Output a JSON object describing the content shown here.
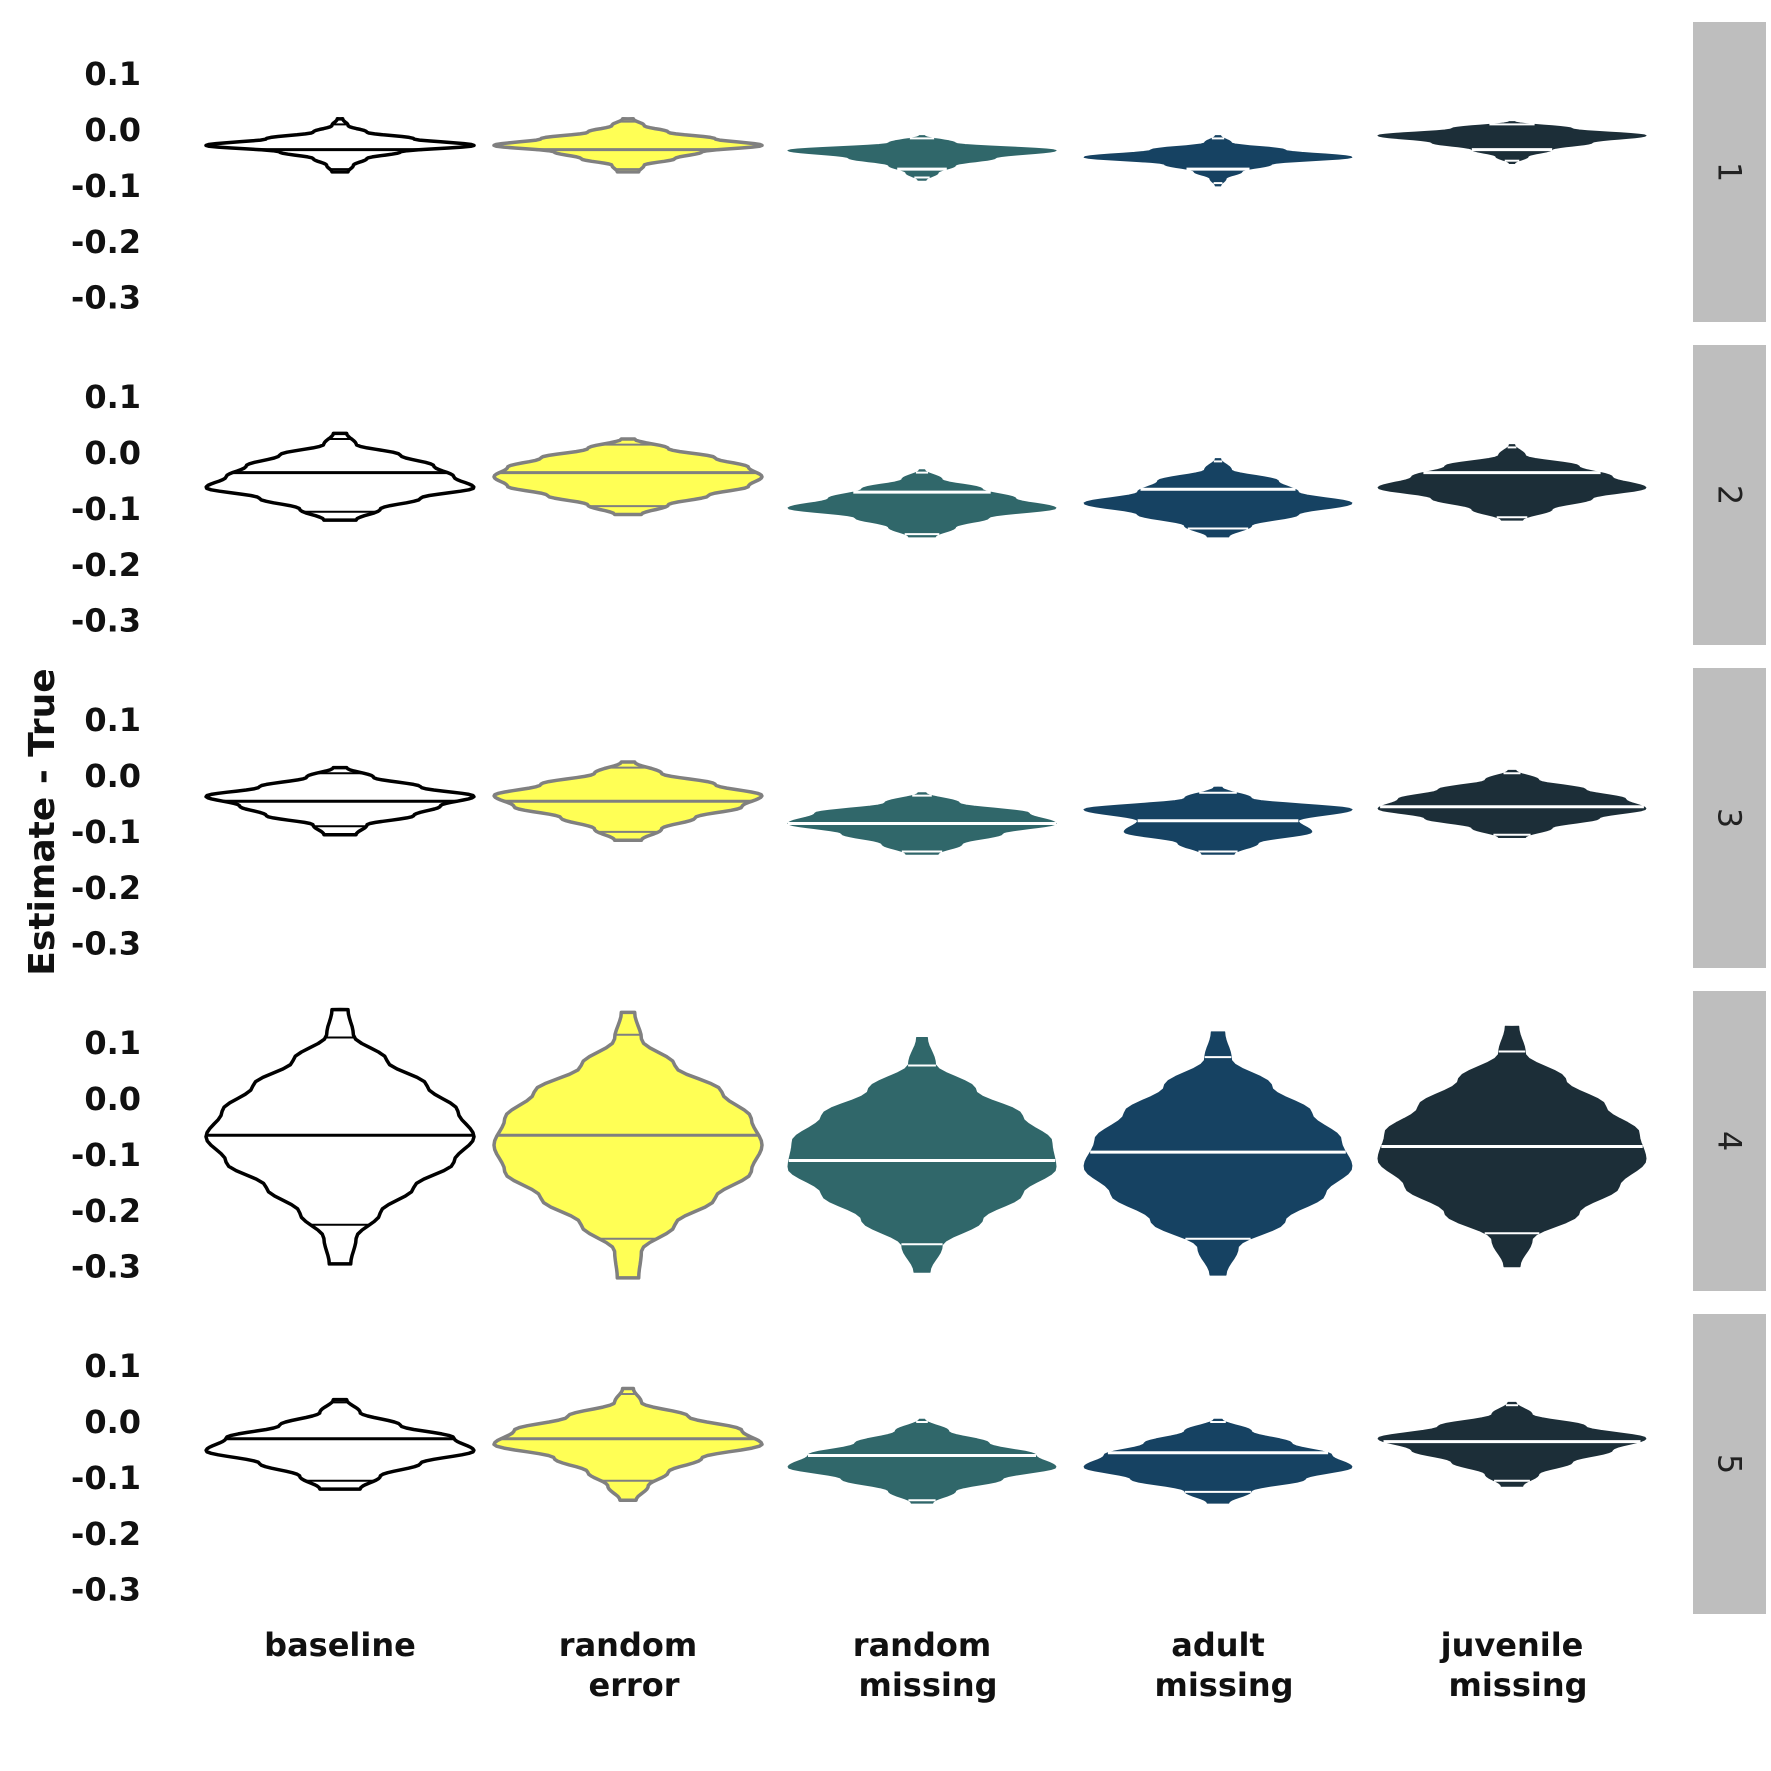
{
  "chart_data": {
    "type": "violin",
    "ylabel": "Estimate - True",
    "yticks": [
      0.1,
      0.0,
      -0.1,
      -0.2,
      -0.3
    ],
    "ytick_labels": [
      "0.1",
      "0.0",
      "-0.1",
      "-0.2",
      "-0.3"
    ],
    "ylim": [
      -0.345,
      0.145
    ],
    "categories": [
      {
        "key": "baseline",
        "label_lines": [
          "baseline"
        ],
        "fill": "#ffffff",
        "stroke": "#000000",
        "inner_line": "#000000"
      },
      {
        "key": "random_error",
        "label_lines": [
          "random",
          "error"
        ],
        "fill": "#ffff55",
        "stroke": "#808080",
        "inner_line": "#808080"
      },
      {
        "key": "random_missing",
        "label_lines": [
          "random",
          "missing"
        ],
        "fill": "#30676a",
        "stroke": "#30676a",
        "inner_line": "#ffffff"
      },
      {
        "key": "adult_missing",
        "label_lines": [
          "adult",
          "missing"
        ],
        "fill": "#164262",
        "stroke": "#164262",
        "inner_line": "#ffffff"
      },
      {
        "key": "juvenile_missing",
        "label_lines": [
          "juvenile",
          "missing"
        ],
        "fill": "#1c2e38",
        "stroke": "#1c2e38",
        "inner_line": "#ffffff"
      }
    ],
    "panels": [
      {
        "label": "1",
        "violins": [
          {
            "min": -0.075,
            "max": 0.02,
            "median": -0.035,
            "q_low": -0.07,
            "q_high": 0.01,
            "shape": [
              0.02,
              0.06,
              0.2,
              0.55,
              1.0,
              0.45,
              0.2,
              0.1,
              0.06
            ]
          },
          {
            "min": -0.075,
            "max": 0.02,
            "median": -0.035,
            "q_low": -0.07,
            "q_high": 0.015,
            "shape": [
              0.04,
              0.12,
              0.3,
              0.65,
              1.0,
              0.55,
              0.35,
              0.12,
              0.08
            ]
          },
          {
            "min": -0.09,
            "max": -0.01,
            "median": -0.07,
            "q_low": -0.085,
            "q_high": -0.015,
            "shape": [
              0.02,
              0.25,
              1.0,
              0.55,
              0.25,
              0.12,
              0.03
            ]
          },
          {
            "min": -0.1,
            "max": -0.01,
            "median": -0.07,
            "q_low": -0.095,
            "q_high": -0.015,
            "shape": [
              0.02,
              0.1,
              0.5,
              1.0,
              0.4,
              0.18,
              0.06,
              0.02
            ]
          },
          {
            "min": -0.06,
            "max": 0.015,
            "median": -0.035,
            "q_low": -0.055,
            "q_high": 0.01,
            "shape": [
              0.02,
              0.45,
              1.0,
              0.6,
              0.3,
              0.12,
              0.02
            ]
          }
        ]
      },
      {
        "label": "2",
        "violins": [
          {
            "min": -0.12,
            "max": 0.035,
            "median": -0.035,
            "q_low": -0.105,
            "q_high": 0.025,
            "shape": [
              0.05,
              0.12,
              0.45,
              0.7,
              0.85,
              1.0,
              0.6,
              0.3,
              0.12
            ]
          },
          {
            "min": -0.11,
            "max": 0.025,
            "median": -0.035,
            "q_low": -0.095,
            "q_high": 0.015,
            "shape": [
              0.05,
              0.3,
              0.65,
              0.9,
              1.0,
              0.9,
              0.6,
              0.3,
              0.1
            ]
          },
          {
            "min": -0.15,
            "max": -0.03,
            "median": -0.07,
            "q_low": -0.145,
            "q_high": -0.035,
            "shape": [
              0.02,
              0.15,
              0.45,
              0.7,
              1.0,
              0.5,
              0.25,
              0.1
            ]
          },
          {
            "min": -0.15,
            "max": -0.01,
            "median": -0.065,
            "q_low": -0.135,
            "q_high": -0.015,
            "shape": [
              0.02,
              0.1,
              0.45,
              0.6,
              1.0,
              0.6,
              0.25,
              0.08
            ]
          },
          {
            "min": -0.12,
            "max": 0.015,
            "median": -0.035,
            "q_low": -0.115,
            "q_high": 0.01,
            "shape": [
              0.02,
              0.1,
              0.5,
              0.75,
              1.0,
              0.6,
              0.3,
              0.08
            ]
          }
        ]
      },
      {
        "label": "3",
        "violins": [
          {
            "min": -0.105,
            "max": 0.015,
            "median": -0.045,
            "q_low": -0.09,
            "q_high": 0.005,
            "shape": [
              0.05,
              0.25,
              0.6,
              1.0,
              0.75,
              0.55,
              0.2,
              0.12
            ]
          },
          {
            "min": -0.115,
            "max": 0.025,
            "median": -0.045,
            "q_low": -0.1,
            "q_high": 0.015,
            "shape": [
              0.05,
              0.25,
              0.65,
              1.0,
              0.85,
              0.5,
              0.25,
              0.1
            ]
          },
          {
            "min": -0.14,
            "max": -0.03,
            "median": -0.085,
            "q_low": -0.135,
            "q_high": -0.035,
            "shape": [
              0.03,
              0.28,
              0.8,
              1.0,
              0.6,
              0.3,
              0.12
            ]
          },
          {
            "min": -0.14,
            "max": -0.02,
            "median": -0.08,
            "q_low": -0.135,
            "q_high": -0.03,
            "shape": [
              0.03,
              0.25,
              1.0,
              0.6,
              0.7,
              0.3,
              0.12
            ]
          },
          {
            "min": -0.11,
            "max": 0.01,
            "median": -0.055,
            "q_low": -0.105,
            "q_high": 0.005,
            "shape": [
              0.03,
              0.2,
              0.55,
              0.85,
              1.0,
              0.65,
              0.3,
              0.1
            ]
          }
        ]
      },
      {
        "label": "4",
        "violins": [
          {
            "min": -0.295,
            "max": 0.16,
            "median": -0.065,
            "q_low": -0.225,
            "q_high": 0.11,
            "shape": [
              0.06,
              0.1,
              0.35,
              0.65,
              0.88,
              1.0,
              0.85,
              0.55,
              0.3,
              0.12,
              0.08
            ]
          },
          {
            "min": -0.32,
            "max": 0.155,
            "median": -0.065,
            "q_low": -0.25,
            "q_high": 0.115,
            "shape": [
              0.05,
              0.1,
              0.35,
              0.7,
              0.92,
              1.0,
              0.92,
              0.65,
              0.35,
              0.1,
              0.08
            ]
          },
          {
            "min": -0.31,
            "max": 0.11,
            "median": -0.11,
            "q_low": -0.26,
            "q_high": 0.06,
            "shape": [
              0.04,
              0.1,
              0.4,
              0.75,
              0.97,
              1.0,
              0.75,
              0.45,
              0.15,
              0.06
            ]
          },
          {
            "min": -0.315,
            "max": 0.12,
            "median": -0.095,
            "q_low": -0.25,
            "q_high": 0.075,
            "shape": [
              0.05,
              0.1,
              0.4,
              0.7,
              0.92,
              1.0,
              0.8,
              0.5,
              0.15,
              0.06
            ]
          },
          {
            "min": -0.3,
            "max": 0.13,
            "median": -0.085,
            "q_low": -0.24,
            "q_high": 0.085,
            "shape": [
              0.05,
              0.1,
              0.4,
              0.7,
              0.95,
              1.0,
              0.8,
              0.5,
              0.15,
              0.06
            ]
          }
        ]
      },
      {
        "label": "5",
        "violins": [
          {
            "min": -0.12,
            "max": 0.04,
            "median": -0.03,
            "q_low": -0.105,
            "q_high": 0.035,
            "shape": [
              0.05,
              0.15,
              0.45,
              0.85,
              1.0,
              0.6,
              0.3,
              0.15
            ]
          },
          {
            "min": -0.14,
            "max": 0.06,
            "median": -0.03,
            "q_low": -0.105,
            "q_high": 0.05,
            "shape": [
              0.04,
              0.1,
              0.45,
              0.85,
              1.0,
              0.55,
              0.3,
              0.15,
              0.06
            ]
          },
          {
            "min": -0.145,
            "max": 0.005,
            "median": -0.06,
            "q_low": -0.14,
            "q_high": 0.0,
            "shape": [
              0.02,
              0.2,
              0.5,
              0.85,
              1.0,
              0.6,
              0.25,
              0.08
            ]
          },
          {
            "min": -0.145,
            "max": 0.005,
            "median": -0.055,
            "q_low": -0.125,
            "q_high": 0.0,
            "shape": [
              0.03,
              0.25,
              0.55,
              0.85,
              1.0,
              0.65,
              0.25,
              0.08
            ]
          },
          {
            "min": -0.115,
            "max": 0.035,
            "median": -0.035,
            "q_low": -0.105,
            "q_high": 0.03,
            "shape": [
              0.03,
              0.15,
              0.55,
              1.0,
              0.75,
              0.45,
              0.2,
              0.08
            ]
          }
        ]
      }
    ],
    "grid": false,
    "strip_position": "right",
    "strip_color": "#bebebe"
  }
}
